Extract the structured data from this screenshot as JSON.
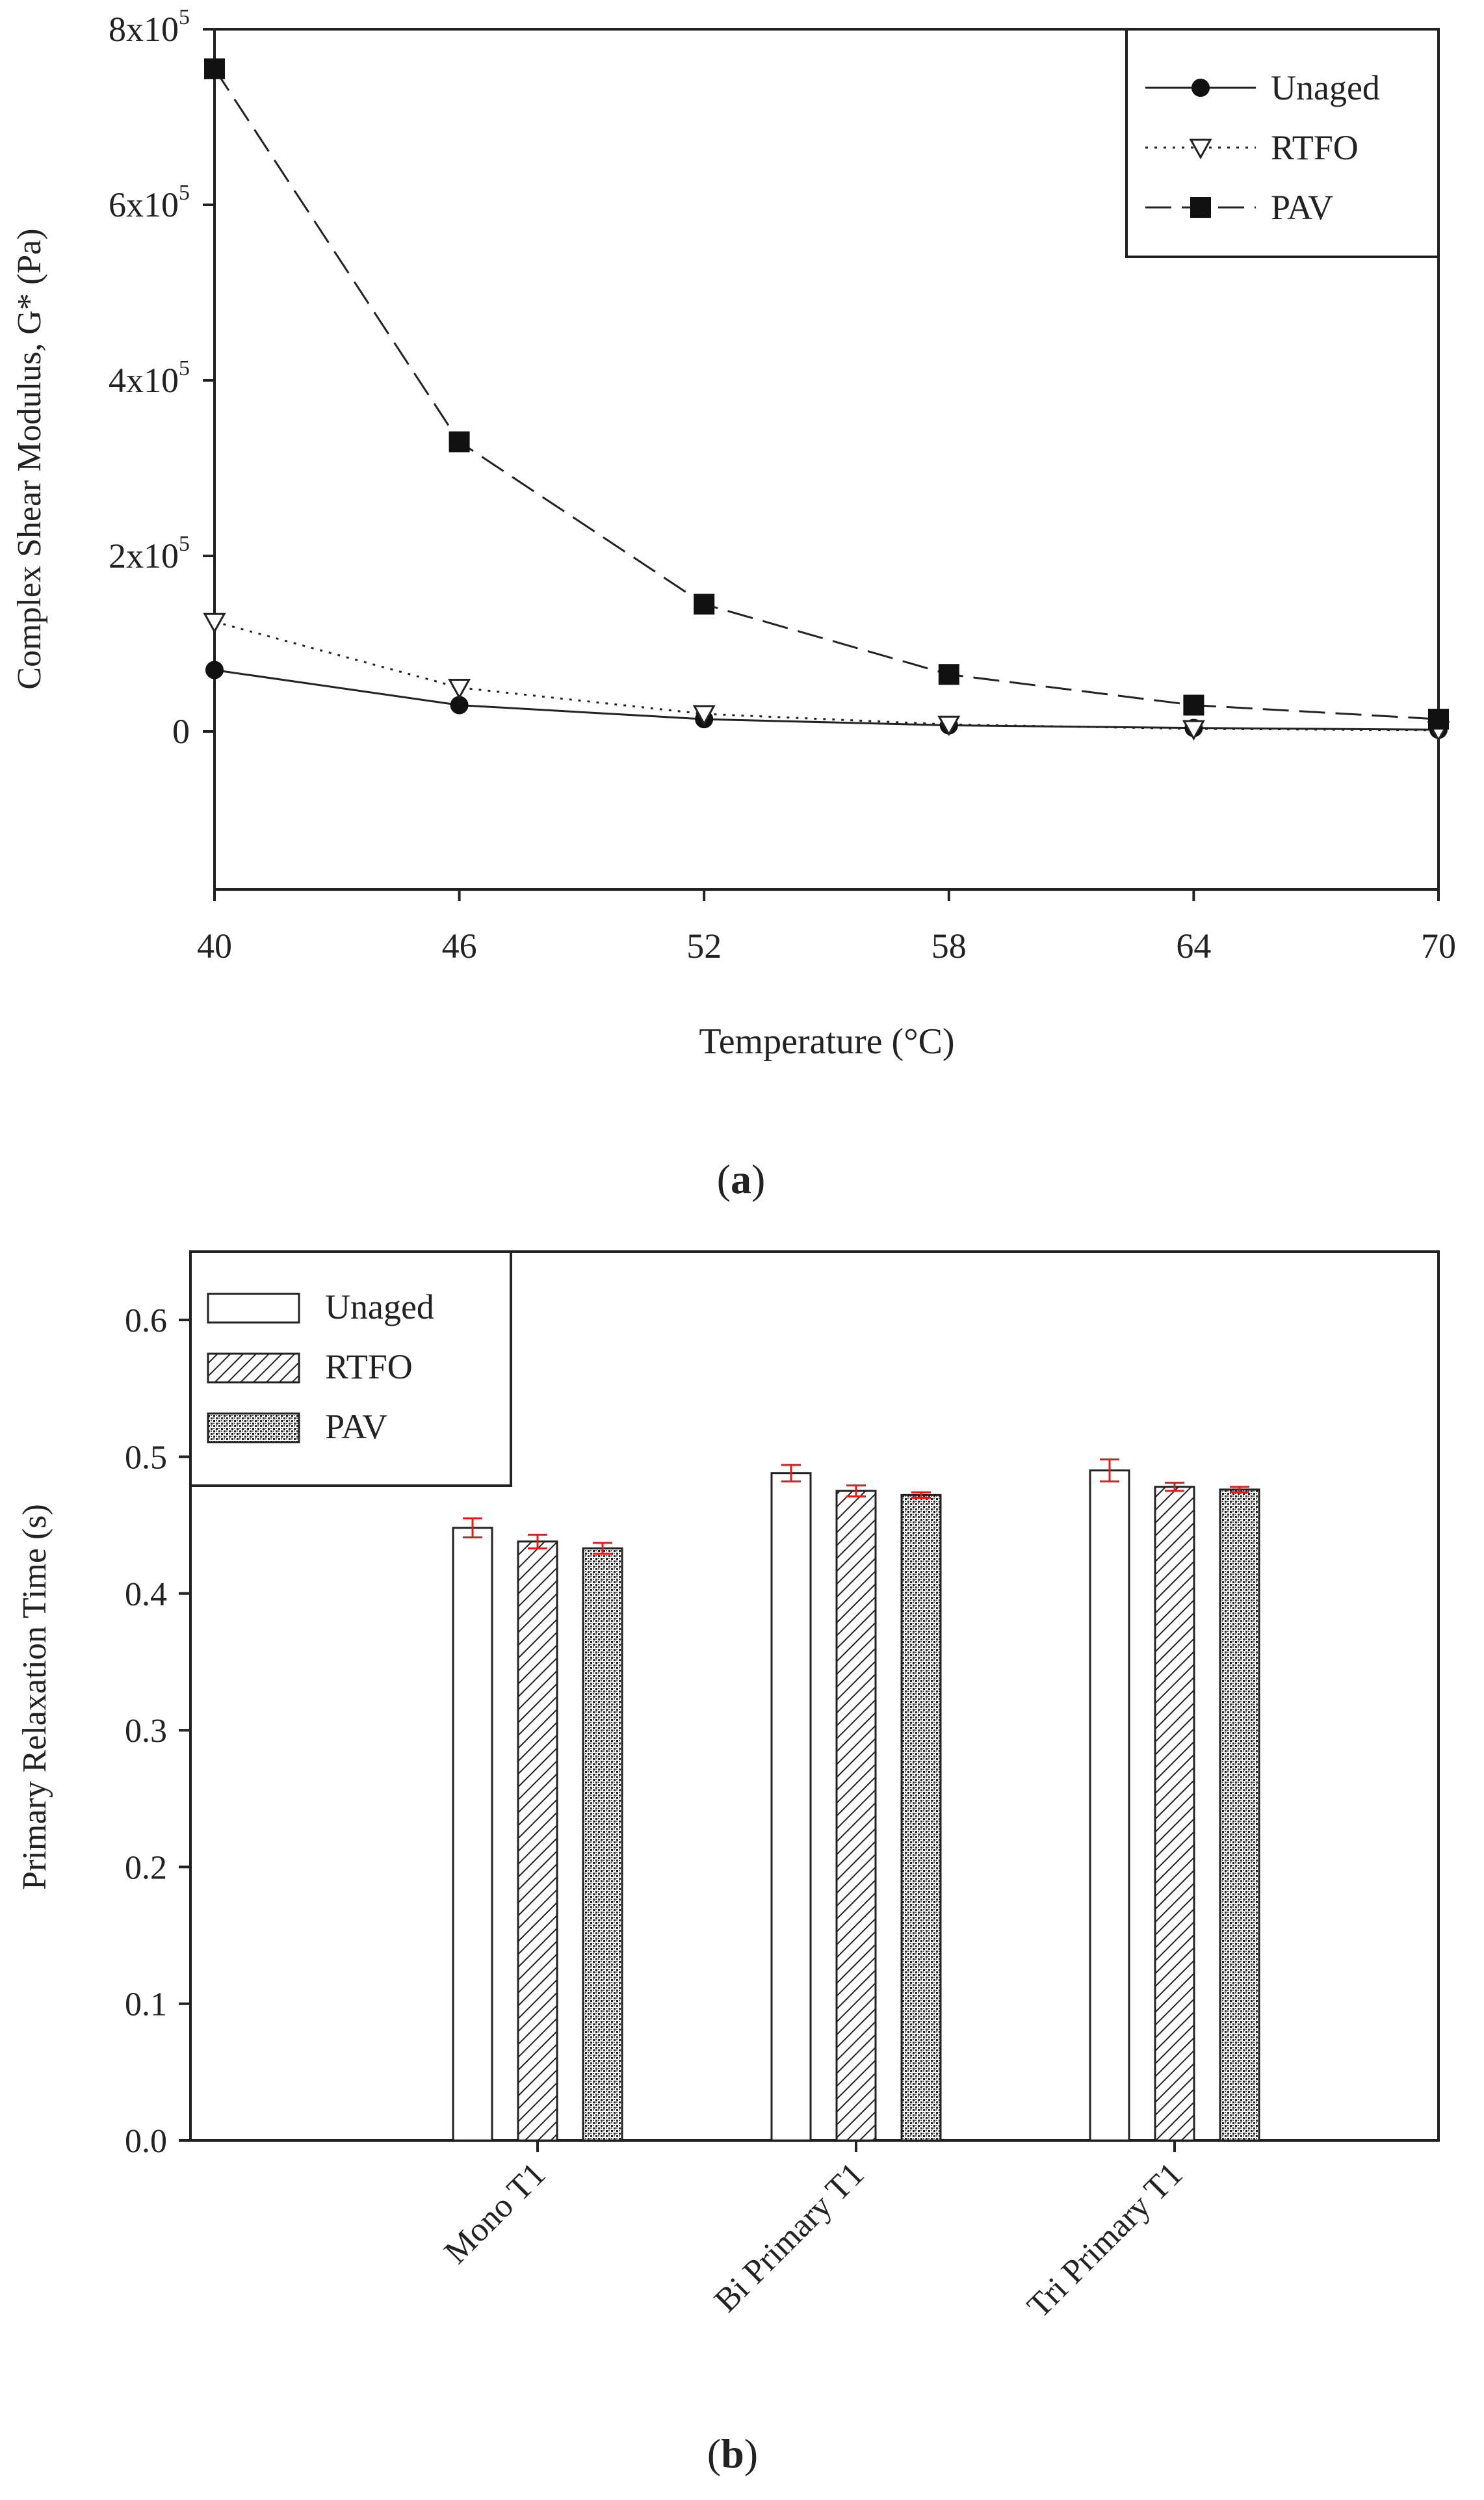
{
  "chart_data": [
    {
      "type": "line",
      "panel_label": "a",
      "xlabel": "Temperature (°C)",
      "ylabel": "Complex Shear Modulus, G* (Pa)",
      "x": [
        40,
        46,
        52,
        58,
        64,
        70
      ],
      "xlim": [
        40,
        70
      ],
      "ylim": [
        -180000,
        800000
      ],
      "yticks": [
        {
          "value": 0,
          "base": "0",
          "exp": ""
        },
        {
          "value": 200000,
          "base": "2x10",
          "exp": "5"
        },
        {
          "value": 400000,
          "base": "4x10",
          "exp": "5"
        },
        {
          "value": 600000,
          "base": "6x10",
          "exp": "5"
        },
        {
          "value": 800000,
          "base": "8x10",
          "exp": "5"
        }
      ],
      "legend_position": "top-right",
      "series": [
        {
          "name": "Unaged",
          "marker": "circle",
          "line": "solid",
          "values": [
            70000,
            30000,
            14000,
            7000,
            4000,
            2000
          ]
        },
        {
          "name": "RTFO",
          "marker": "triangle-down-open",
          "line": "dotted",
          "values": [
            125000,
            50000,
            20000,
            8000,
            3000,
            1500
          ]
        },
        {
          "name": "PAV",
          "marker": "square",
          "line": "dashed",
          "values": [
            755000,
            330000,
            145000,
            65000,
            30000,
            14000
          ]
        }
      ]
    },
    {
      "type": "bar",
      "panel_label": "b",
      "xlabel": "",
      "ylabel": "Primary Relaxation Time (s)",
      "categories": [
        "Mono T1",
        "Bi Primary T1",
        "Tri Primary T1"
      ],
      "ylim": [
        0.0,
        0.65
      ],
      "yticks": [
        "0.0",
        "0.1",
        "0.2",
        "0.3",
        "0.4",
        "0.5",
        "0.6"
      ],
      "legend_position": "top-left",
      "error_bar_color": "#e8191b",
      "series": [
        {
          "name": "Unaged",
          "fill": "white",
          "values": [
            0.448,
            0.488,
            0.49
          ],
          "errors": [
            0.007,
            0.006,
            0.008
          ]
        },
        {
          "name": "RTFO",
          "fill": "diagonal-hatch",
          "values": [
            0.438,
            0.475,
            0.478
          ],
          "errors": [
            0.005,
            0.004,
            0.003
          ]
        },
        {
          "name": "PAV",
          "fill": "crosshatch",
          "values": [
            0.433,
            0.472,
            0.476
          ],
          "errors": [
            0.004,
            0.002,
            0.002
          ]
        }
      ]
    }
  ]
}
